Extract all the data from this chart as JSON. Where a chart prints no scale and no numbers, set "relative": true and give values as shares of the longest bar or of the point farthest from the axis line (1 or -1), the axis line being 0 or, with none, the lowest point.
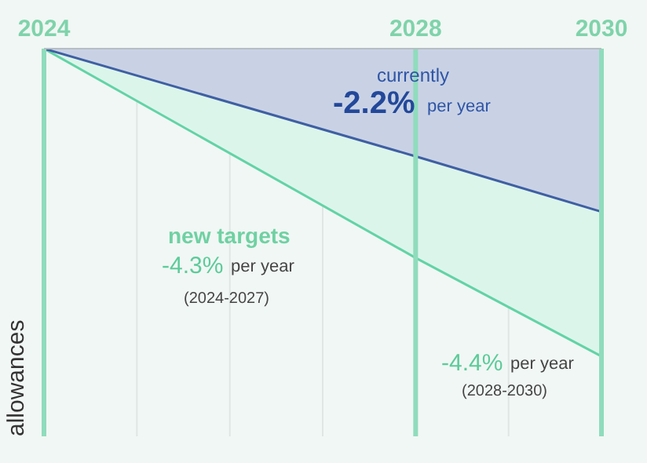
{
  "chart_data": {
    "type": "area",
    "relative": true,
    "x": [
      2024,
      2028,
      2030
    ],
    "xticks": [
      2024,
      {
        "value": 2025,
        "label": null
      },
      {
        "value": 2026,
        "label": null
      },
      {
        "value": 2027,
        "label": null
      },
      2028,
      {
        "value": 2029,
        "label": null
      },
      2030
    ],
    "xlim": [
      2024,
      2030
    ],
    "ylabel": "allowances",
    "grid": "x",
    "series": [
      {
        "color": "#3f5fa3",
        "values": [
          0,
          -0.35,
          -0.53
        ]
      },
      {
        "color": "#62d3a6",
        "values": [
          0,
          -0.68,
          -1
        ]
      }
    ],
    "ref_lines": [
      {
        "axis": "x",
        "value": 2024,
        "color": "#8fdcbc"
      },
      {
        "axis": "x",
        "value": 2028,
        "color": "#8fdcbc"
      },
      {
        "axis": "x",
        "value": 2030,
        "color": "#8fdcbc"
      }
    ],
    "annotations": [
      "currently",
      "-2.2%",
      "per year",
      "new targets",
      "-4.3%",
      "per year",
      "(2024-2027)",
      "-4.4%",
      "per year",
      "(2028-2030)"
    ]
  }
}
